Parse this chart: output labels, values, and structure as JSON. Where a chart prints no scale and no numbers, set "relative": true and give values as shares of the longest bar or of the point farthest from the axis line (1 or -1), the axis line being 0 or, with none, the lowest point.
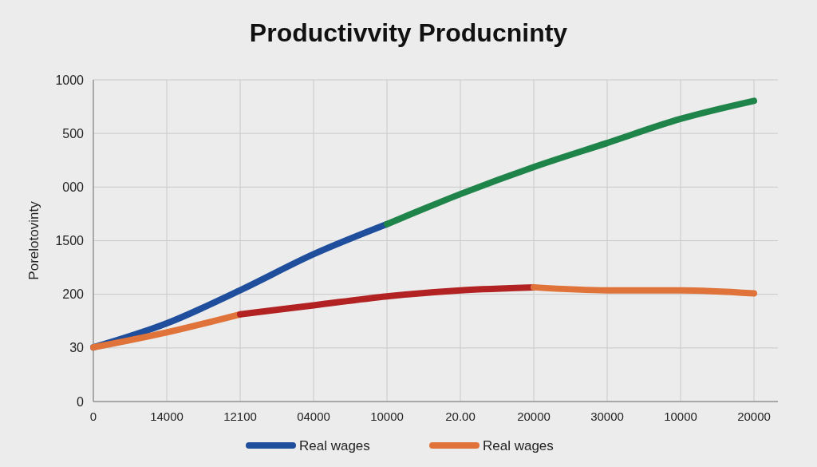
{
  "chart_data": {
    "type": "line",
    "title": "Productivvity Producninty",
    "ylabel": "Porelotovinty",
    "relative": true,
    "categories": [
      "0",
      "14000",
      "12100",
      "04000",
      "10000",
      "20.00",
      "20000",
      "30000",
      "10000",
      "20000"
    ],
    "annotations": [
      "1000",
      "500",
      "000",
      "1500",
      "200",
      "30",
      "0"
    ],
    "grid": true,
    "legend": "bottom",
    "line_style": "solid",
    "series": [
      {
        "name": "Real wages",
        "color": "#1f4e9c",
        "values": [
          0.18,
          0.26,
          0.37,
          0.49,
          0.59,
          null,
          null,
          null,
          null,
          null
        ]
      },
      {
        "color": "#1e8449",
        "values": [
          null,
          null,
          null,
          null,
          0.59,
          0.69,
          0.78,
          0.86,
          0.94,
          1.0
        ]
      },
      {
        "name": "Real wages",
        "color": "#e0733a",
        "values": [
          0.18,
          0.23,
          0.29,
          null,
          null,
          null,
          null,
          null,
          null,
          null
        ]
      },
      {
        "color": "#b22222",
        "values": [
          null,
          null,
          0.29,
          0.32,
          0.35,
          0.37,
          0.38,
          null,
          null,
          null
        ]
      },
      {
        "color": "#e0733a",
        "values": [
          null,
          null,
          null,
          null,
          null,
          null,
          0.38,
          0.37,
          0.37,
          0.36
        ]
      }
    ]
  }
}
